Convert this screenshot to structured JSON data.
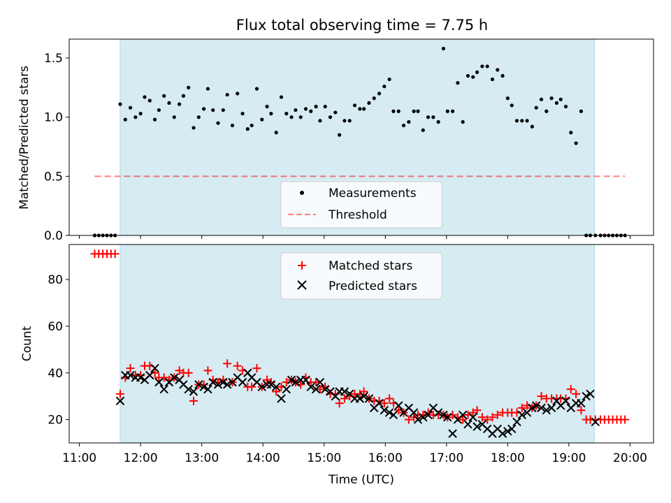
{
  "chart_data": [
    {
      "type": "scatter",
      "title": "Flux total observing time = 7.75 h",
      "xlabel": "",
      "ylabel": "Matched/Predicted stars",
      "xlim": [
        "10:50",
        "20:23"
      ],
      "ylim": [
        0,
        1.66
      ],
      "yticks": [
        0,
        0.5,
        1.0,
        1.5
      ],
      "ytick_labels": [
        "0.0",
        "0.5",
        "1.0",
        "1.5"
      ],
      "xticks": [
        "11:00",
        "12:00",
        "13:00",
        "14:00",
        "15:00",
        "16:00",
        "17:00",
        "18:00",
        "19:00",
        "20:00"
      ],
      "grid": false,
      "legend_position": "bottom-center",
      "observing_window": {
        "start": "11:40",
        "end": "19:25",
        "color": "#add8e6"
      },
      "threshold": {
        "name": "Threshold",
        "y": 0.5,
        "x_start": "11:15",
        "x_end": "19:55",
        "color": "#ff0000"
      },
      "series": [
        {
          "name": "Measurements",
          "marker": "dot",
          "color": "#000000",
          "x": [
            "11:15",
            "11:19",
            "11:23",
            "11:27",
            "11:31",
            "11:35",
            "11:40",
            "11:45",
            "11:50",
            "11:55",
            "12:00",
            "12:04",
            "12:09",
            "12:14",
            "12:18",
            "12:23",
            "12:28",
            "12:33",
            "12:38",
            "12:42",
            "12:47",
            "12:52",
            "12:57",
            "13:02",
            "13:06",
            "13:11",
            "13:16",
            "13:21",
            "13:25",
            "13:30",
            "13:35",
            "13:40",
            "13:45",
            "13:49",
            "13:54",
            "13:59",
            "14:04",
            "14:08",
            "14:13",
            "14:18",
            "14:23",
            "14:28",
            "14:32",
            "14:37",
            "14:42",
            "14:47",
            "14:52",
            "14:56",
            "15:01",
            "15:06",
            "15:11",
            "15:15",
            "15:20",
            "15:25",
            "15:30",
            "15:35",
            "15:39",
            "15:44",
            "15:49",
            "15:54",
            "15:59",
            "16:04",
            "16:08",
            "16:13",
            "16:18",
            "16:23",
            "16:28",
            "16:32",
            "16:37",
            "16:42",
            "16:47",
            "16:52",
            "16:57",
            "17:01",
            "17:06",
            "17:11",
            "17:16",
            "17:21",
            "17:26",
            "17:30",
            "17:35",
            "17:40",
            "17:45",
            "17:50",
            "17:55",
            "18:00",
            "18:04",
            "18:09",
            "18:14",
            "18:19",
            "18:24",
            "18:28",
            "18:33",
            "18:38",
            "18:43",
            "18:48",
            "18:52",
            "18:57",
            "19:02",
            "19:07",
            "19:12",
            "19:17",
            "19:21",
            "19:26",
            "19:31",
            "19:35",
            "19:39",
            "19:43",
            "19:47",
            "19:51",
            "19:55"
          ],
          "y": [
            0,
            0,
            0,
            0,
            0,
            0,
            1.11,
            0.98,
            1.08,
            1.0,
            1.03,
            1.17,
            1.14,
            0.98,
            1.06,
            1.18,
            1.12,
            1.0,
            1.11,
            1.18,
            1.25,
            0.91,
            1.0,
            1.07,
            1.24,
            1.06,
            0.95,
            1.06,
            1.19,
            0.93,
            1.2,
            1.03,
            0.9,
            0.93,
            1.24,
            0.98,
            1.09,
            1.03,
            0.87,
            1.17,
            1.03,
            1.0,
            1.06,
            1.0,
            1.07,
            1.05,
            1.09,
            0.97,
            1.09,
            1.0,
            1.04,
            0.85,
            0.97,
            0.97,
            1.1,
            1.07,
            1.07,
            1.12,
            1.16,
            1.2,
            1.26,
            1.32,
            1.05,
            1.05,
            0.93,
            0.96,
            1.05,
            1.05,
            0.89,
            1.0,
            1.0,
            0.96,
            1.58,
            1.05,
            1.05,
            1.29,
            0.96,
            1.35,
            1.34,
            1.38,
            1.43,
            1.43,
            1.32,
            1.4,
            1.35,
            1.16,
            1.1,
            0.97,
            0.97,
            0.97,
            0.92,
            1.08,
            1.15,
            1.05,
            1.16,
            1.12,
            1.15,
            1.09,
            0.87,
            0.78,
            1.05,
            0,
            0,
            0,
            0,
            0,
            0,
            0,
            0,
            0,
            0
          ]
        }
      ]
    },
    {
      "type": "scatter",
      "title": "",
      "xlabel": "Time (UTC)",
      "ylabel": "Count",
      "xlim": [
        "10:50",
        "20:23"
      ],
      "ylim": [
        10,
        95
      ],
      "yticks": [
        20,
        40,
        60,
        80
      ],
      "ytick_labels": [
        "20",
        "40",
        "60",
        "80"
      ],
      "xticks": [
        "11:00",
        "12:00",
        "13:00",
        "14:00",
        "15:00",
        "16:00",
        "17:00",
        "18:00",
        "19:00",
        "20:00"
      ],
      "grid": false,
      "legend_position": "top-center",
      "observing_window": {
        "start": "11:40",
        "end": "19:25",
        "color": "#add8e6"
      },
      "series": [
        {
          "name": "Matched stars",
          "marker": "plus",
          "color": "#ff0000",
          "x": [
            "11:15",
            "11:19",
            "11:23",
            "11:27",
            "11:31",
            "11:35",
            "11:40",
            "11:45",
            "11:50",
            "11:55",
            "12:00",
            "12:04",
            "12:09",
            "12:14",
            "12:18",
            "12:23",
            "12:28",
            "12:33",
            "12:38",
            "12:42",
            "12:47",
            "12:52",
            "12:57",
            "13:02",
            "13:06",
            "13:11",
            "13:16",
            "13:21",
            "13:25",
            "13:30",
            "13:35",
            "13:40",
            "13:45",
            "13:49",
            "13:54",
            "13:59",
            "14:04",
            "14:08",
            "14:13",
            "14:18",
            "14:23",
            "14:28",
            "14:32",
            "14:37",
            "14:42",
            "14:47",
            "14:52",
            "14:56",
            "15:01",
            "15:06",
            "15:11",
            "15:15",
            "15:20",
            "15:25",
            "15:30",
            "15:35",
            "15:39",
            "15:44",
            "15:49",
            "15:54",
            "15:59",
            "16:04",
            "16:08",
            "16:13",
            "16:18",
            "16:23",
            "16:28",
            "16:32",
            "16:37",
            "16:42",
            "16:47",
            "16:52",
            "16:57",
            "17:01",
            "17:06",
            "17:11",
            "17:16",
            "17:21",
            "17:26",
            "17:30",
            "17:35",
            "17:40",
            "17:45",
            "17:50",
            "17:55",
            "18:00",
            "18:04",
            "18:09",
            "18:14",
            "18:19",
            "18:24",
            "18:28",
            "18:33",
            "18:38",
            "18:43",
            "18:48",
            "18:52",
            "18:57",
            "19:02",
            "19:07",
            "19:12",
            "19:17",
            "19:21",
            "19:26",
            "19:31",
            "19:35",
            "19:39",
            "19:43",
            "19:47",
            "19:51",
            "19:55"
          ],
          "y": [
            91,
            91,
            91,
            91,
            91,
            91,
            31,
            38,
            42,
            39,
            39,
            43,
            43,
            40,
            38,
            38,
            37,
            38,
            41,
            40,
            40,
            28,
            35,
            35,
            41,
            37,
            36,
            37,
            44,
            36,
            43,
            41,
            34,
            34,
            42,
            34,
            37,
            36,
            32,
            34,
            36,
            37,
            36,
            35,
            38,
            36,
            36,
            33,
            34,
            31,
            31,
            27,
            29,
            30,
            31,
            31,
            32,
            29,
            28,
            28,
            27,
            29,
            27,
            24,
            23,
            20,
            21,
            22,
            22,
            23,
            22,
            22,
            22,
            21,
            22,
            21,
            20,
            22,
            23,
            24,
            21,
            20,
            21,
            22,
            23,
            23,
            23,
            23,
            25,
            26,
            25,
            26,
            30,
            29,
            29,
            29,
            29,
            29,
            33,
            31,
            24,
            20,
            20,
            20,
            20,
            20,
            20,
            20,
            20,
            20,
            20
          ]
        },
        {
          "name": "Predicted stars",
          "marker": "x",
          "color": "#000000",
          "x": [
            "11:40",
            "11:45",
            "11:50",
            "11:55",
            "12:00",
            "12:04",
            "12:09",
            "12:14",
            "12:18",
            "12:23",
            "12:28",
            "12:33",
            "12:38",
            "12:42",
            "12:47",
            "12:52",
            "12:57",
            "13:02",
            "13:06",
            "13:11",
            "13:16",
            "13:21",
            "13:25",
            "13:30",
            "13:35",
            "13:40",
            "13:45",
            "13:49",
            "13:54",
            "13:59",
            "14:04",
            "14:08",
            "14:13",
            "14:18",
            "14:23",
            "14:28",
            "14:32",
            "14:37",
            "14:42",
            "14:47",
            "14:52",
            "14:56",
            "15:01",
            "15:06",
            "15:11",
            "15:15",
            "15:20",
            "15:25",
            "15:30",
            "15:35",
            "15:39",
            "15:44",
            "15:49",
            "15:54",
            "15:59",
            "16:04",
            "16:08",
            "16:13",
            "16:18",
            "16:23",
            "16:28",
            "16:32",
            "16:37",
            "16:42",
            "16:47",
            "16:52",
            "16:57",
            "17:01",
            "17:06",
            "17:11",
            "17:16",
            "17:21",
            "17:26",
            "17:30",
            "17:35",
            "17:40",
            "17:45",
            "17:50",
            "17:55",
            "18:00",
            "18:04",
            "18:09",
            "18:14",
            "18:19",
            "18:24",
            "18:28",
            "18:33",
            "18:38",
            "18:43",
            "18:48",
            "18:52",
            "18:57",
            "19:02",
            "19:07",
            "19:12",
            "19:17",
            "19:21",
            "19:26"
          ],
          "y": [
            28,
            39,
            39,
            38,
            38,
            37,
            39,
            42,
            36,
            33,
            36,
            38,
            37,
            35,
            33,
            32,
            35,
            34,
            33,
            36,
            35,
            36,
            35,
            36,
            38,
            36,
            40,
            38,
            36,
            34,
            35,
            35,
            34,
            29,
            33,
            37,
            36,
            37,
            37,
            34,
            33,
            36,
            33,
            32,
            30,
            32,
            32,
            31,
            29,
            29,
            30,
            29,
            25,
            27,
            24,
            23,
            22,
            26,
            23,
            25,
            23,
            20,
            21,
            22,
            25,
            23,
            22,
            21,
            14,
            20,
            22,
            18,
            21,
            17,
            18,
            16,
            14,
            16,
            14,
            15,
            16,
            19,
            22,
            23,
            25,
            26,
            25,
            24,
            25,
            28,
            26,
            28,
            25,
            27,
            27,
            30,
            31,
            19
          ]
        }
      ]
    }
  ]
}
